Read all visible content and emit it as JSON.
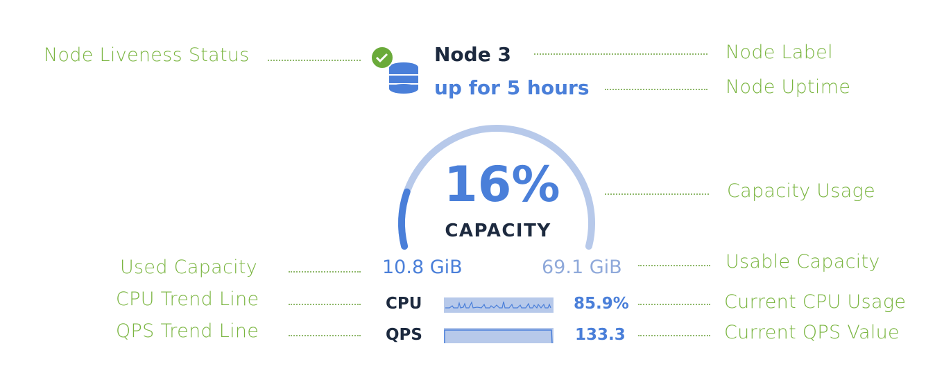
{
  "node": {
    "label": "Node 3",
    "uptime": "up for 5 hours",
    "liveness_icon": "check-circle-icon",
    "node_icon": "database-icon",
    "status_color": "#6aaa3a"
  },
  "capacity": {
    "percent_text": "16%",
    "percent": 16,
    "caption": "CAPACITY",
    "used": "10.8 GiB",
    "usable": "69.1 GiB"
  },
  "metrics": {
    "cpu_label": "CPU",
    "cpu_value": "85.9%",
    "qps_label": "QPS",
    "qps_value": "133.3"
  },
  "annotations": {
    "liveness": "Node Liveness Status",
    "node_label": "Node Label",
    "uptime": "Node Uptime",
    "capacity_usage": "Capacity Usage",
    "used_capacity": "Used Capacity",
    "usable_capacity": "Usable Capacity",
    "cpu_trend": "CPU Trend Line",
    "cpu_current": "Current CPU Usage",
    "qps_trend": "QPS Trend Line",
    "qps_current": "Current QPS Value"
  },
  "colors": {
    "annotation": "#7ab540",
    "accent": "#4a7fd9",
    "track": "#b7c9ea",
    "text_dark": "#1d2a3f"
  }
}
